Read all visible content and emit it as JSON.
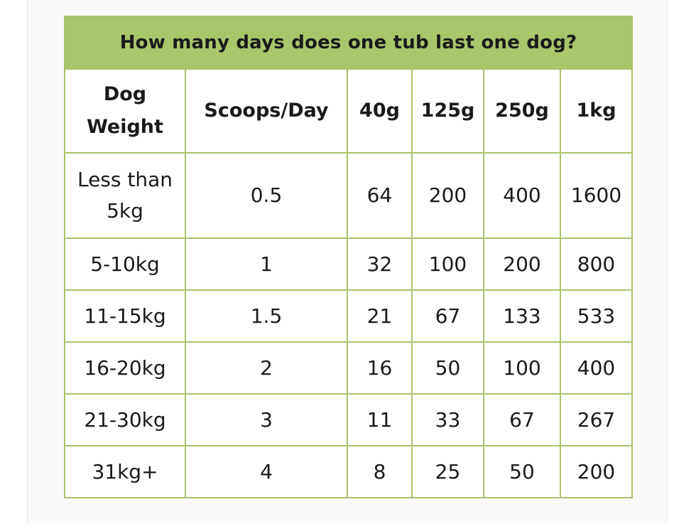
{
  "table": {
    "title": "How many days does one tub last one dog?",
    "headers": [
      "Dog Weight",
      "Scoops/Day",
      "40g",
      "125g",
      "250g",
      "1kg"
    ],
    "rows": [
      [
        "Less than 5kg",
        "0.5",
        "64",
        "200",
        "400",
        "1600"
      ],
      [
        "5-10kg",
        "1",
        "32",
        "100",
        "200",
        "800"
      ],
      [
        "11-15kg",
        "1.5",
        "21",
        "67",
        "133",
        "533"
      ],
      [
        "16-20kg",
        "2",
        "16",
        "50",
        "100",
        "400"
      ],
      [
        "21-30kg",
        "3",
        "11",
        "33",
        "67",
        "267"
      ],
      [
        "31kg+",
        "4",
        "8",
        "25",
        "50",
        "200"
      ]
    ]
  },
  "colors": {
    "title_background": "#a9c66b",
    "border": "#a9c26a",
    "panel_background": "#fafafa"
  }
}
